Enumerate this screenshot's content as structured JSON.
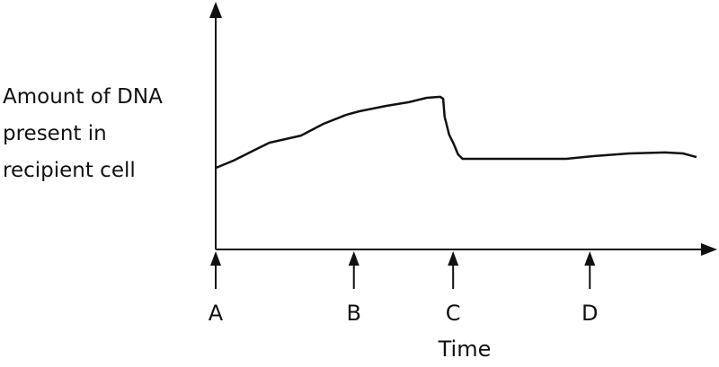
{
  "chart_data": {
    "type": "line",
    "title": "",
    "xlabel": "Time",
    "ylabel_lines": [
      "Amount of DNA",
      "present in",
      "recipient cell"
    ],
    "xlim": [
      0,
      100
    ],
    "ylim": [
      0,
      100
    ],
    "grid": false,
    "legend": "none",
    "line_color": "#111111",
    "series": [
      {
        "x": [
          0,
          3.6,
          9.0,
          10.8,
          17.1,
          21.6,
          26.1,
          28.8,
          34.2,
          38.7,
          42.3,
          45.0,
          45.6,
          45.9,
          46.8,
          47.7,
          48.6,
          49.5,
          53.2,
          70.3,
          75.7,
          82.9,
          90.1,
          93.7,
          96.4
        ],
        "y": [
          33.3,
          36.3,
          41.8,
          43.6,
          46.5,
          51.3,
          54.9,
          56.4,
          58.6,
          60.1,
          61.9,
          62.3,
          61.5,
          54.2,
          46.9,
          43.2,
          38.8,
          37.0,
          37.0,
          37.0,
          38.1,
          39.2,
          39.6,
          39.2,
          37.7
        ]
      }
    ],
    "time_markers": [
      {
        "label": "A",
        "x": 0
      },
      {
        "label": "B",
        "x": 27.7
      },
      {
        "label": "C",
        "x": 47.6
      },
      {
        "label": "D",
        "x": 75.0
      }
    ]
  }
}
